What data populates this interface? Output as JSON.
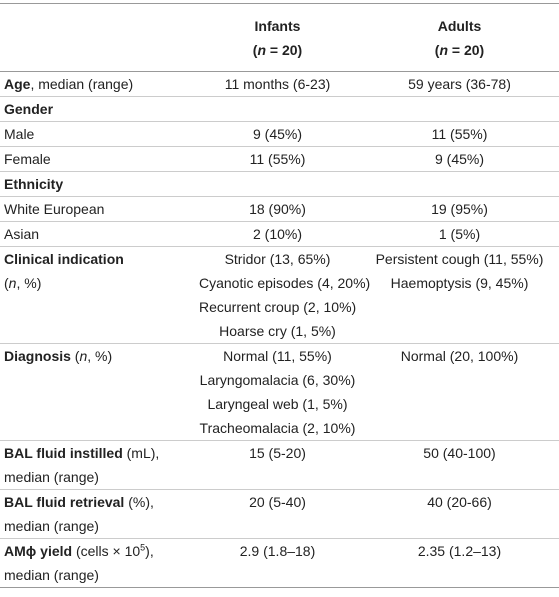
{
  "table": {
    "columns": [
      {
        "lines": [
          [
            {
              "text": "Infants",
              "style": "bold"
            }
          ],
          [
            {
              "text": "(",
              "style": "bold"
            },
            {
              "text": "n",
              "style": "bold-italic"
            },
            {
              "text": " = 20)",
              "style": "bold"
            }
          ]
        ]
      },
      {
        "lines": [
          [
            {
              "text": "Adults",
              "style": "bold"
            }
          ],
          [
            {
              "text": "(",
              "style": "bold"
            },
            {
              "text": "n",
              "style": "bold-italic"
            },
            {
              "text": " = 20)",
              "style": "bold"
            }
          ]
        ]
      }
    ],
    "rows": [
      {
        "label": [
          [
            {
              "text": "Age",
              "style": "bold"
            },
            {
              "text": ", median (range)"
            }
          ]
        ],
        "cells": [
          [
            "11 months (6-23)"
          ],
          [
            "59 years (36-78)"
          ]
        ]
      },
      {
        "label": [
          [
            {
              "text": "Gender",
              "style": "bold"
            }
          ]
        ]
      },
      {
        "label": [
          [
            {
              "text": "Male"
            }
          ]
        ],
        "cells": [
          [
            "9 (45%)"
          ],
          [
            "11 (55%)"
          ]
        ]
      },
      {
        "label": [
          [
            {
              "text": "Female"
            }
          ]
        ],
        "cells": [
          [
            "11 (55%)"
          ],
          [
            "9 (45%)"
          ]
        ]
      },
      {
        "label": [
          [
            {
              "text": "Ethnicity",
              "style": "bold"
            }
          ]
        ]
      },
      {
        "label": [
          [
            {
              "text": "White European"
            }
          ]
        ],
        "cells": [
          [
            "18 (90%)"
          ],
          [
            "19 (95%)"
          ]
        ]
      },
      {
        "label": [
          [
            {
              "text": "Asian"
            }
          ]
        ],
        "cells": [
          [
            "2 (10%)"
          ],
          [
            "1 (5%)"
          ]
        ]
      },
      {
        "label": [
          [
            {
              "text": "Clinical indication",
              "style": "bold"
            }
          ],
          [
            {
              "text": "("
            },
            {
              "text": "n",
              "style": "italic"
            },
            {
              "text": ", %)"
            }
          ]
        ],
        "cells": [
          [
            "Stridor (13, 65%)",
            "Cyanotic episodes (4, 20%)",
            "Recurrent croup (2, 10%)",
            "Hoarse cry (1, 5%)"
          ],
          [
            "Persistent cough (11, 55%)",
            "Haemoptysis (9, 45%)"
          ]
        ]
      },
      {
        "label": [
          [
            {
              "text": "Diagnosis",
              "style": "bold"
            },
            {
              "text": " ("
            },
            {
              "text": "n",
              "style": "italic"
            },
            {
              "text": ", %)"
            }
          ]
        ],
        "cells": [
          [
            "Normal (11, 55%)",
            "Laryngomalacia (6, 30%)",
            "Laryngeal web (1, 5%)",
            "Tracheomalacia (2, 10%)"
          ],
          [
            "Normal (20, 100%)"
          ]
        ]
      },
      {
        "label": [
          [
            {
              "text": "BAL fluid instilled",
              "style": "bold"
            },
            {
              "text": " (mL),"
            }
          ],
          [
            {
              "text": "median (range)"
            }
          ]
        ],
        "cells": [
          [
            "15 (5-20)"
          ],
          [
            "50 (40-100)"
          ]
        ]
      },
      {
        "label": [
          [
            {
              "text": "BAL fluid retrieval",
              "style": "bold"
            },
            {
              "text": " (%),"
            }
          ],
          [
            {
              "text": "median (range)"
            }
          ]
        ],
        "cells": [
          [
            "20 (5-40)"
          ],
          [
            "40 (20-66)"
          ]
        ]
      },
      {
        "label": [
          [
            {
              "text": "AMϕ yield",
              "style": "bold"
            },
            {
              "text": " (cells × 10"
            },
            {
              "text": "5",
              "style": "sup"
            },
            {
              "text": "),"
            }
          ],
          [
            {
              "text": "median (range)"
            }
          ]
        ],
        "cells": [
          [
            "2.9 (1.8–18)"
          ],
          [
            "2.35 (1.2–13)"
          ]
        ]
      }
    ]
  }
}
